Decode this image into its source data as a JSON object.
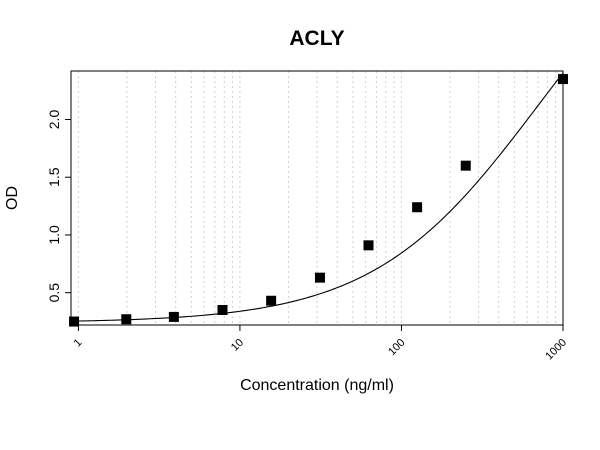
{
  "chart_data": {
    "type": "scatter",
    "title": "ACLY",
    "xlabel": "Concentration (ng/ml)",
    "ylabel": "OD",
    "x_scale": "log",
    "xlim": [
      0.9,
      1000
    ],
    "ylim": [
      0.22,
      2.42
    ],
    "x_tick_labels": [
      "1",
      "10",
      "100",
      "1000"
    ],
    "y_tick_labels": [
      "0.5",
      "1.0",
      "1.5",
      "2.0"
    ],
    "grid": "vertical dotted at minor log ticks",
    "series": [
      {
        "marker": "square",
        "fit_line": "4-parameter logistic",
        "x": [
          0.94,
          1.98,
          3.9,
          7.8,
          15.6,
          31.3,
          62.5,
          125,
          250,
          1000
        ],
        "y": [
          0.25,
          0.27,
          0.29,
          0.35,
          0.43,
          0.63,
          0.91,
          1.24,
          1.6,
          2.35
        ]
      }
    ],
    "fit": {
      "bottom": 0.24,
      "top": 4.0,
      "ec50": 700,
      "hill": 0.85
    }
  },
  "colors": {
    "points": "#000000",
    "line": "#000000",
    "grid": "#d0d0d0",
    "frame": "#000000"
  }
}
